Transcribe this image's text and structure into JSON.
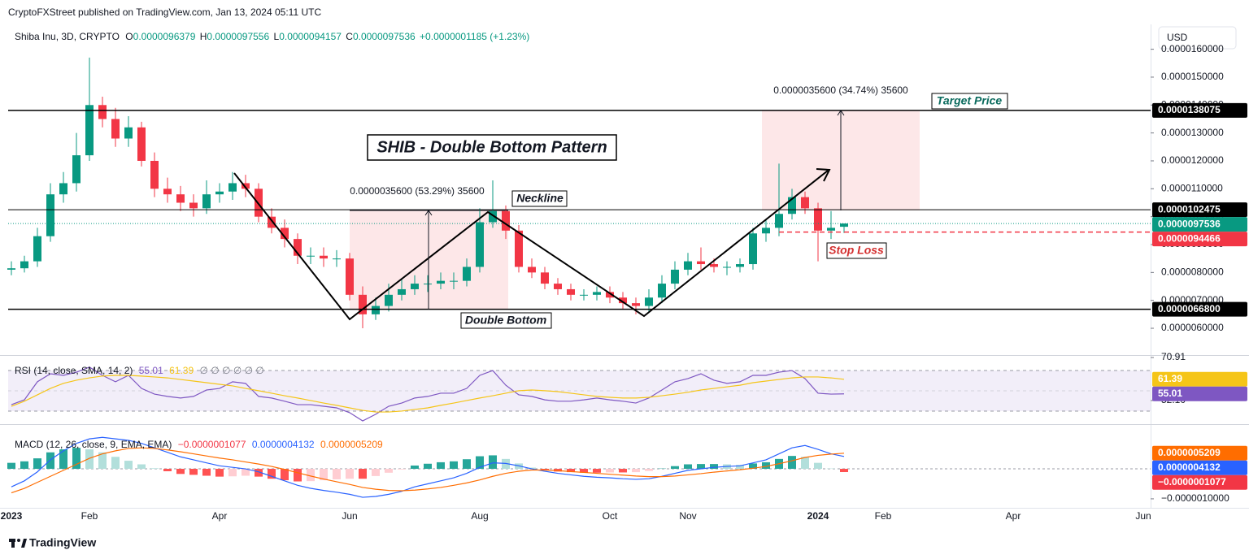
{
  "header": {
    "publisher": "CryptoFXStreet published on TradingView.com, Jan 13, 2024 05:11 UTC",
    "symbol": "Shiba Inu, 3D, CRYPTO",
    "ohlc": [
      {
        "key": "O",
        "value": "0.0000096379"
      },
      {
        "key": "H",
        "value": "0.0000097556"
      },
      {
        "key": "L",
        "value": "0.0000094157"
      },
      {
        "key": "C",
        "value": "0.0000097536"
      }
    ],
    "change": "+0.0000001185 (+1.23%)",
    "currency": "USD"
  },
  "chart_data": [
    {
      "type": "candlestick",
      "categories": [
        "2023",
        null,
        null,
        null,
        null,
        null,
        "Feb",
        null,
        null,
        null,
        null,
        null,
        null,
        null,
        null,
        null,
        "Apr",
        null,
        null,
        null,
        null,
        null,
        null,
        null,
        null,
        null,
        "Jun",
        null,
        null,
        null,
        null,
        null,
        null,
        null,
        null,
        null,
        "Aug",
        null,
        null,
        null,
        null,
        null,
        null,
        null,
        null,
        null,
        "Oct",
        null,
        null,
        null,
        null,
        null,
        "Nov",
        null,
        null,
        null,
        null,
        null,
        null,
        null,
        null,
        null,
        "2024",
        null,
        null,
        null,
        null,
        "Feb",
        null,
        null,
        null,
        null,
        null,
        null,
        null,
        null,
        null,
        "Apr",
        null,
        null,
        null,
        null,
        null,
        null,
        null,
        null,
        null,
        "Jun"
      ],
      "open": [
        8.1e-06,
        8.15e-06,
        8.4e-06,
        9.3e-06,
        1.08e-05,
        1.12e-05,
        1.22e-05,
        1.4e-05,
        1.35e-05,
        1.28e-05,
        1.32e-05,
        1.2e-05,
        1.1e-05,
        1.08e-05,
        1.05e-05,
        1.03e-05,
        1.08e-05,
        1.09e-05,
        1.12e-05,
        1.1e-05,
        1e-05,
        9.6e-06,
        9.2e-06,
        8.6e-06,
        8.6e-06,
        8.5e-06,
        8.5e-06,
        7.2e-06,
        6.5e-06,
        6.8e-06,
        7.2e-06,
        7.4e-06,
        7.6e-06,
        7.6e-06,
        7.7e-06,
        7.7e-06,
        8.2e-06,
        9.8e-06,
        1.02e-05,
        9.5e-06,
        8.2e-06,
        8e-06,
        7.6e-06,
        7.4e-06,
        7.2e-06,
        7.2e-06,
        7.3e-06,
        7.1e-06,
        6.9e-06,
        6.8e-06,
        7.1e-06,
        7.6e-06,
        8.1e-06,
        8.4e-06,
        8.3e-06,
        8.2e-06,
        8.2e-06,
        8.3e-06,
        9.4e-06,
        9.6e-06,
        1.01e-05,
        1.07e-05,
        1.03e-05,
        9.5e-06,
        9.6379e-06,
        null,
        null,
        null,
        null,
        null,
        null,
        null,
        null,
        null,
        null,
        null,
        null,
        null,
        null,
        null,
        null,
        null,
        null,
        null,
        null,
        null,
        null,
        null
      ],
      "high": [
        8.4e-06,
        8.6e-06,
        9.6e-06,
        1.12e-05,
        1.16e-05,
        1.3e-05,
        1.57e-05,
        1.43e-05,
        1.39e-05,
        1.36e-05,
        1.34e-05,
        1.23e-05,
        1.14e-05,
        1.11e-05,
        1.08e-05,
        1.13e-05,
        1.12e-05,
        1.16e-05,
        1.15e-05,
        1.12e-05,
        1.03e-05,
        9.9e-06,
        9.4e-06,
        8.9e-06,
        8.9e-06,
        8.8e-06,
        8.7e-06,
        7.5e-06,
        7.1e-06,
        7.6e-06,
        7.8e-06,
        7.9e-06,
        7.9e-06,
        8e-06,
        8e-06,
        8.5e-06,
        1.03e-05,
        1.13e-05,
        1.04e-05,
        9.7e-06,
        8.5e-06,
        8.2e-06,
        7.8e-06,
        7.6e-06,
        7.4e-06,
        7.5e-06,
        7.5e-06,
        7.3e-06,
        7.1e-06,
        7.4e-06,
        7.9e-06,
        8.4e-06,
        8.7e-06,
        8.9e-06,
        8.5e-06,
        8.4e-06,
        8.5e-06,
        9.6e-06,
        9.9e-06,
        1.19e-05,
        1.1e-05,
        1.09e-05,
        1.05e-05,
        1.02e-05,
        9.7556e-06,
        null,
        null,
        null,
        null,
        null,
        null,
        null,
        null,
        null,
        null,
        null,
        null,
        null,
        null,
        null,
        null,
        null,
        null,
        null,
        null,
        null,
        null,
        null
      ],
      "low": [
        7.9e-06,
        8e-06,
        8.2e-06,
        9.1e-06,
        1.05e-05,
        1.09e-05,
        1.2e-05,
        1.32e-05,
        1.25e-05,
        1.25e-05,
        1.18e-05,
        1.07e-05,
        1.05e-05,
        1.02e-05,
        1e-05,
        1.01e-05,
        1.05e-05,
        1.06e-05,
        1.07e-05,
        9.8e-06,
        9.4e-06,
        8.9e-06,
        8.3e-06,
        8.3e-06,
        8.2e-06,
        8.2e-06,
        7e-06,
        6e-06,
        6.3e-06,
        6.6e-06,
        7e-06,
        7.2e-06,
        7.3e-06,
        7.4e-06,
        7.4e-06,
        7.5e-06,
        8e-06,
        9.6e-06,
        9.2e-06,
        8e-06,
        7.8e-06,
        7.4e-06,
        7.2e-06,
        7e-06,
        7e-06,
        7e-06,
        6.9e-06,
        6.7e-06,
        6.5e-06,
        6.6e-06,
        6.9e-06,
        7.4e-06,
        7.9e-06,
        8.1e-06,
        8e-06,
        7.9e-06,
        8e-06,
        8.1e-06,
        9.1e-06,
        9.3e-06,
        9.9e-06,
        1.01e-05,
        8.4e-06,
        9.2e-06,
        9.4157e-06,
        null,
        null,
        null,
        null,
        null,
        null,
        null,
        null,
        null,
        null,
        null,
        null,
        null,
        null,
        null,
        null,
        null,
        null,
        null,
        null,
        null,
        null,
        null
      ],
      "close": [
        8.15e-06,
        8.4e-06,
        9.3e-06,
        1.08e-05,
        1.12e-05,
        1.22e-05,
        1.4e-05,
        1.35e-05,
        1.28e-05,
        1.32e-05,
        1.2e-05,
        1.1e-05,
        1.08e-05,
        1.05e-05,
        1.03e-05,
        1.08e-05,
        1.09e-05,
        1.12e-05,
        1.1e-05,
        1e-05,
        9.6e-06,
        9.2e-06,
        8.6e-06,
        8.6e-06,
        8.5e-06,
        8.5e-06,
        7.2e-06,
        6.5e-06,
        6.8e-06,
        7.2e-06,
        7.4e-06,
        7.6e-06,
        7.6e-06,
        7.7e-06,
        7.7e-06,
        8.2e-06,
        9.8e-06,
        1.02e-05,
        9.5e-06,
        8.2e-06,
        8e-06,
        7.6e-06,
        7.4e-06,
        7.2e-06,
        7.2e-06,
        7.3e-06,
        7.1e-06,
        6.9e-06,
        6.8e-06,
        7.1e-06,
        7.6e-06,
        8.1e-06,
        8.4e-06,
        8.3e-06,
        8.2e-06,
        8.2e-06,
        8.3e-06,
        9.4e-06,
        9.6e-06,
        1.01e-05,
        1.07e-05,
        1.03e-05,
        9.5e-06,
        9.6e-06,
        9.7536e-06,
        null,
        null,
        null,
        null,
        null,
        null,
        null,
        null,
        null,
        null,
        null,
        null,
        null,
        null,
        null,
        null,
        null,
        null,
        null,
        null,
        null,
        null,
        null
      ],
      "up_color": "#089981",
      "down_color": "#f23645",
      "ylim": [
        5.04e-06,
        1.66e-05
      ],
      "yticks": [
        {
          "value": 6e-06,
          "label": "0.0000060000"
        },
        {
          "value": 7e-06,
          "label": "0.0000070000"
        },
        {
          "value": 8e-06,
          "label": "0.0000080000"
        },
        {
          "value": 9e-06,
          "label": "0.0000090000"
        },
        {
          "value": 1e-05,
          "label": "0.0000100000"
        },
        {
          "value": 1.1e-05,
          "label": "0.0000110000"
        },
        {
          "value": 1.2e-05,
          "label": "0.0000120000"
        },
        {
          "value": 1.3e-05,
          "label": "0.0000130000"
        },
        {
          "value": 1.4e-05,
          "label": "0.0000140000"
        },
        {
          "value": 1.5e-05,
          "label": "0.0000150000"
        },
        {
          "value": 1.6e-05,
          "label": "0.0000160000"
        }
      ],
      "levels": [
        {
          "value": 1.38075e-05,
          "label": "0.0000138075",
          "color": "#000000",
          "style": "solid"
        },
        {
          "value": 1.02475e-05,
          "label": "0.0000102475",
          "color": "#000000",
          "style": "thin"
        },
        {
          "value": 9.7536e-06,
          "label": "0.0000097536",
          "color": "#089981",
          "style": "dotted"
        },
        {
          "value": 9.4466e-06,
          "label": "0.0000094466",
          "color": "#f23645",
          "style": "dashed"
        },
        {
          "value": 6.68e-06,
          "label": "0.0000066800",
          "color": "#000000",
          "style": "solid"
        }
      ],
      "annotations": {
        "title": "SHIB - Double Bottom Pattern",
        "neckline": "Neckline",
        "double_bottom": "Double Bottom",
        "target": "Target Price",
        "stop": "Stop Loss",
        "measure_1": "0.0000035600 (53.29%) 35600",
        "measure_2": "0.0000035600 (34.74%) 35600"
      }
    },
    {
      "type": "line",
      "title": "RSI (14, close, SMA, 14, 2)",
      "extra": "∅ ∅ ∅ ∅ ∅ ∅",
      "ylim": [
        42.5,
        70.91
      ],
      "yticks": [
        70.91,
        {
          "value": 52.1,
          "label": "52.10"
        }
      ],
      "series": [
        {
          "color": "#7e57c2",
          "last_label": "55.01",
          "values": [
            50.3,
            52.4,
            60.3,
            63.8,
            63.1,
            64.5,
            66.7,
            63.1,
            60.3,
            63.1,
            57.4,
            54.9,
            53.9,
            53.2,
            53.9,
            56.7,
            57.4,
            60.3,
            59.6,
            53.9,
            53.2,
            51.8,
            50.3,
            50.3,
            49.6,
            48.9,
            46.8,
            43.2,
            46.1,
            49.6,
            51.0,
            53.2,
            53.9,
            55.3,
            55.3,
            57.4,
            63.1,
            65.2,
            58.8,
            54.6,
            53.9,
            52.4,
            51.8,
            51.8,
            52.4,
            53.2,
            52.4,
            51.8,
            51.0,
            53.2,
            56.7,
            60.3,
            61.7,
            63.8,
            61.0,
            59.6,
            60.3,
            63.1,
            63.1,
            64.5,
            65.2,
            61.7,
            55.3,
            54.9,
            55.01
          ]
        },
        {
          "color": "#f5c518",
          "last_label": "61.39",
          "values": [
            49.6,
            51.8,
            54.6,
            57.4,
            59.6,
            61.0,
            62.0,
            62.8,
            63.1,
            63.1,
            62.8,
            62.4,
            62.0,
            61.3,
            60.6,
            59.9,
            59.2,
            58.5,
            57.4,
            56.4,
            55.3,
            54.2,
            53.2,
            52.1,
            51.0,
            50.0,
            48.9,
            47.8,
            47.1,
            47.1,
            47.5,
            48.2,
            48.9,
            50.0,
            51.0,
            52.1,
            53.2,
            54.2,
            55.3,
            56.4,
            56.7,
            56.4,
            56.0,
            55.3,
            54.6,
            53.9,
            53.5,
            53.2,
            53.2,
            53.5,
            54.2,
            54.9,
            55.7,
            56.7,
            57.4,
            58.1,
            58.8,
            59.9,
            60.6,
            61.3,
            62.0,
            62.4,
            62.4,
            62.0,
            61.39
          ]
        }
      ]
    },
    {
      "type": "line",
      "title": "MACD (12, 26, close, 9, EMA, EMA)",
      "ylim": [
        -1.3e-06,
        1.41e-06
      ],
      "yticks": [
        {
          "value": -1e-06,
          "label": "−0.0000010000"
        }
      ],
      "series": [
        {
          "type": "bar",
          "color": "#f23645",
          "last_label": "−0.0000001077",
          "values": [
            2e-07,
            2.5e-07,
            3.5e-07,
            5.5e-07,
            6.5e-07,
            7e-07,
            6.5e-07,
            5.5e-07,
            4e-07,
            2.7e-07,
            1.5e-07,
            2e-08,
            -8e-08,
            -1.7e-07,
            -2e-07,
            -2.3e-07,
            -2.6e-07,
            -2.5e-07,
            -2.3e-07,
            -2.6e-07,
            -3.3e-07,
            -3.8e-07,
            -4.2e-07,
            -4.1e-07,
            -3.8e-07,
            -3.5e-07,
            -3.3e-07,
            -3.3e-07,
            -2.4e-07,
            -1.3e-07,
            -2e-08,
            1.1e-07,
            1.7e-07,
            2.2e-07,
            2.5e-07,
            3.2e-07,
            4.2e-07,
            4.5e-07,
            3.3e-07,
            1.8e-07,
            4e-08,
            -4e-08,
            -9e-08,
            -1.1e-07,
            -1.3e-07,
            -1.3e-07,
            -1.2e-07,
            -1.2e-07,
            -1.1e-07,
            -7e-08,
            1e-08,
            9e-08,
            1.5e-07,
            1.6e-07,
            1.6e-07,
            1.5e-07,
            1.3e-07,
            1.8e-07,
            2.2e-07,
            3.3e-07,
            4.3e-07,
            4e-07,
            2e-07,
            1e-08,
            -1.077e-07
          ]
        },
        {
          "type": "line",
          "color": "#2962ff",
          "last_label": "0.0000004132",
          "values": [
            -6e-07,
            -4e-07,
            -1e-07,
            3e-07,
            6e-07,
            8.5e-07,
            1e-06,
            1.05e-06,
            1e-06,
            9.5e-07,
            8.5e-07,
            7e-07,
            5.5e-07,
            4e-07,
            3e-07,
            2e-07,
            1e-07,
            5e-08,
            0,
            -1e-07,
            -2.5e-07,
            -4e-07,
            -5.5e-07,
            -6.5e-07,
            -7.2e-07,
            -7.8e-07,
            -8.5e-07,
            -9.5e-07,
            -9.2e-07,
            -8.5e-07,
            -7.5e-07,
            -6e-07,
            -5e-07,
            -4e-07,
            -3e-07,
            -1.5e-07,
            5e-08,
            2e-07,
            1.8e-07,
            1e-07,
            0,
            -8e-08,
            -1.5e-07,
            -2e-07,
            -2.5e-07,
            -2.8e-07,
            -3e-07,
            -3.3e-07,
            -3.5e-07,
            -3.3e-07,
            -2.5e-07,
            -1.5e-07,
            -5e-08,
            0,
            5e-08,
            8e-08,
            1e-07,
            2e-07,
            3e-07,
            5e-07,
            7e-07,
            7.8e-07,
            6.5e-07,
            5e-07,
            4.132e-07
          ]
        },
        {
          "type": "line",
          "color": "#ff6d00",
          "last_label": "0.0000005209",
          "values": [
            -8e-07,
            -6.5e-07,
            -4.5e-07,
            -2.5e-07,
            -5e-08,
            1.5e-07,
            3.5e-07,
            5e-07,
            6e-07,
            6.8e-07,
            7e-07,
            6.8e-07,
            6.3e-07,
            5.7e-07,
            5e-07,
            4.3e-07,
            3.6e-07,
            3e-07,
            2.3e-07,
            1.6e-07,
            8e-08,
            -2e-08,
            -1.3e-07,
            -2.4e-07,
            -3.4e-07,
            -4.3e-07,
            -5.2e-07,
            -6.2e-07,
            -6.8e-07,
            -7.2e-07,
            -7.3e-07,
            -7.1e-07,
            -6.7e-07,
            -6.2e-07,
            -5.5e-07,
            -4.7e-07,
            -3.7e-07,
            -2.5e-07,
            -1.5e-07,
            -8e-08,
            -4e-08,
            -4e-08,
            -6e-08,
            -9e-08,
            -1.2e-07,
            -1.5e-07,
            -1.8e-07,
            -2.1e-07,
            -2.4e-07,
            -2.6e-07,
            -2.6e-07,
            -2.4e-07,
            -2e-07,
            -1.6e-07,
            -1.1e-07,
            -7e-08,
            -3e-08,
            2e-08,
            8e-08,
            1.7e-07,
            2.7e-07,
            3.8e-07,
            4.5e-07,
            4.9e-07,
            5.209e-07
          ]
        }
      ]
    }
  ],
  "footer": {
    "brand": "TradingView"
  }
}
